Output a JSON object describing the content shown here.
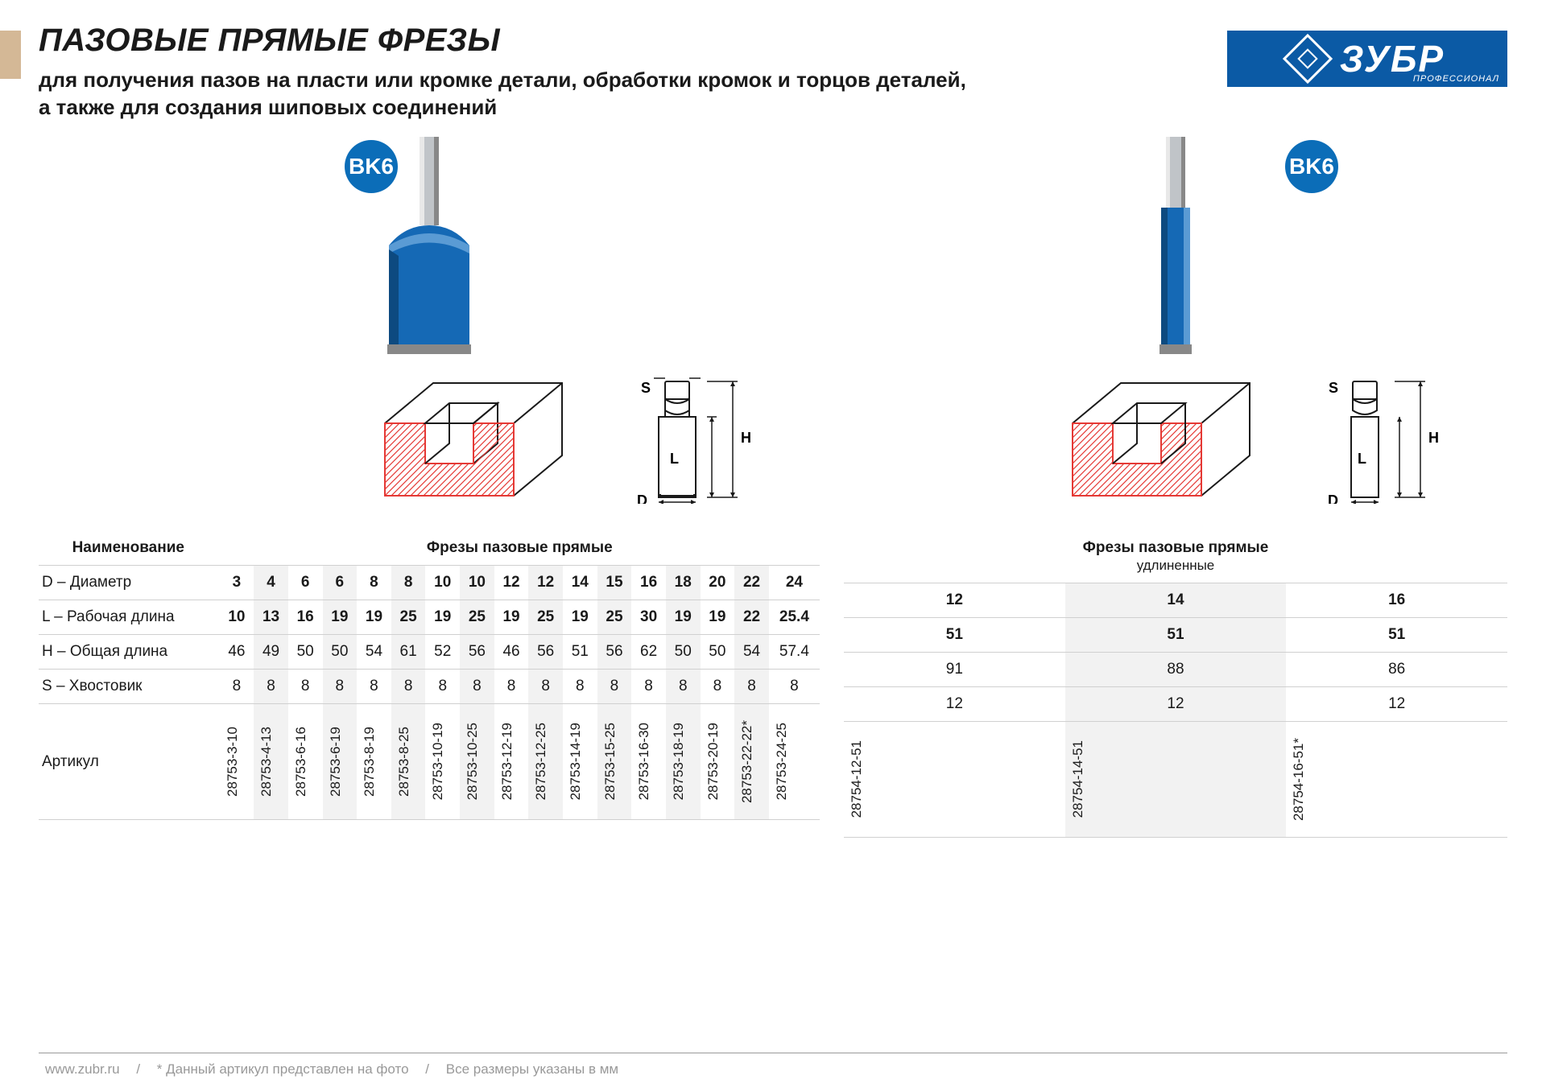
{
  "header": {
    "title": "ПАЗОВЫЕ ПРЯМЫЕ ФРЕЗЫ",
    "subtitle": "для получения пазов на пласти или кромке детали, обработки кромок и торцов деталей,\nа также для создания шиповых соединений"
  },
  "brand": {
    "name": "ЗУБР",
    "sub": "ПРОФЕССИОНАЛ"
  },
  "badge": "BK6",
  "colors": {
    "brand_blue": "#0b5aa5",
    "badge_blue": "#0b6db8",
    "tool_blue": "#1569b5",
    "shank_gray": "#b8bcc0",
    "diagram_red": "#e53935",
    "left_tab": "#d4b896",
    "alt_bg": "#f2f2f2"
  },
  "rows": {
    "name": "Наименование",
    "d": "D – Диаметр",
    "l": "L – Рабочая длина",
    "h": "H – Общая длина",
    "s": "S – Хвостовик",
    "art": "Артикул"
  },
  "diagram_labels": {
    "s": "S",
    "h": "H",
    "l": "L",
    "d": "D"
  },
  "table1": {
    "title": "Фрезы пазовые прямые",
    "d": [
      "3",
      "4",
      "6",
      "6",
      "8",
      "8",
      "10",
      "10",
      "12",
      "12",
      "14",
      "15",
      "16",
      "18",
      "20",
      "22",
      "24"
    ],
    "l": [
      "10",
      "13",
      "16",
      "19",
      "19",
      "25",
      "19",
      "25",
      "19",
      "25",
      "19",
      "25",
      "30",
      "19",
      "19",
      "22",
      "25.4"
    ],
    "h": [
      "46",
      "49",
      "50",
      "50",
      "54",
      "61",
      "52",
      "56",
      "46",
      "56",
      "51",
      "56",
      "62",
      "50",
      "50",
      "54",
      "57.4"
    ],
    "s": [
      "8",
      "8",
      "8",
      "8",
      "8",
      "8",
      "8",
      "8",
      "8",
      "8",
      "8",
      "8",
      "8",
      "8",
      "8",
      "8",
      "8"
    ],
    "art": [
      "28753-3-10",
      "28753-4-13",
      "28753-6-16",
      "28753-6-19",
      "28753-8-19",
      "28753-8-25",
      "28753-10-19",
      "28753-10-25",
      "28753-12-19",
      "28753-12-25",
      "28753-14-19",
      "28753-15-25",
      "28753-16-30",
      "28753-18-19",
      "28753-20-19",
      "28753-22-22*",
      "28753-24-25"
    ]
  },
  "table2": {
    "title": "Фрезы пазовые прямые",
    "subtitle": "удлиненные",
    "d": [
      "12",
      "14",
      "16"
    ],
    "l": [
      "51",
      "51",
      "51"
    ],
    "h": [
      "91",
      "88",
      "86"
    ],
    "s": [
      "12",
      "12",
      "12"
    ],
    "art": [
      "28754-12-51",
      "28754-14-51",
      "28754-16-51*"
    ]
  },
  "footer": {
    "url": "www.zubr.ru",
    "note1": "* Данный артикул представлен на фото",
    "note2": "Все размеры указаны в мм"
  }
}
